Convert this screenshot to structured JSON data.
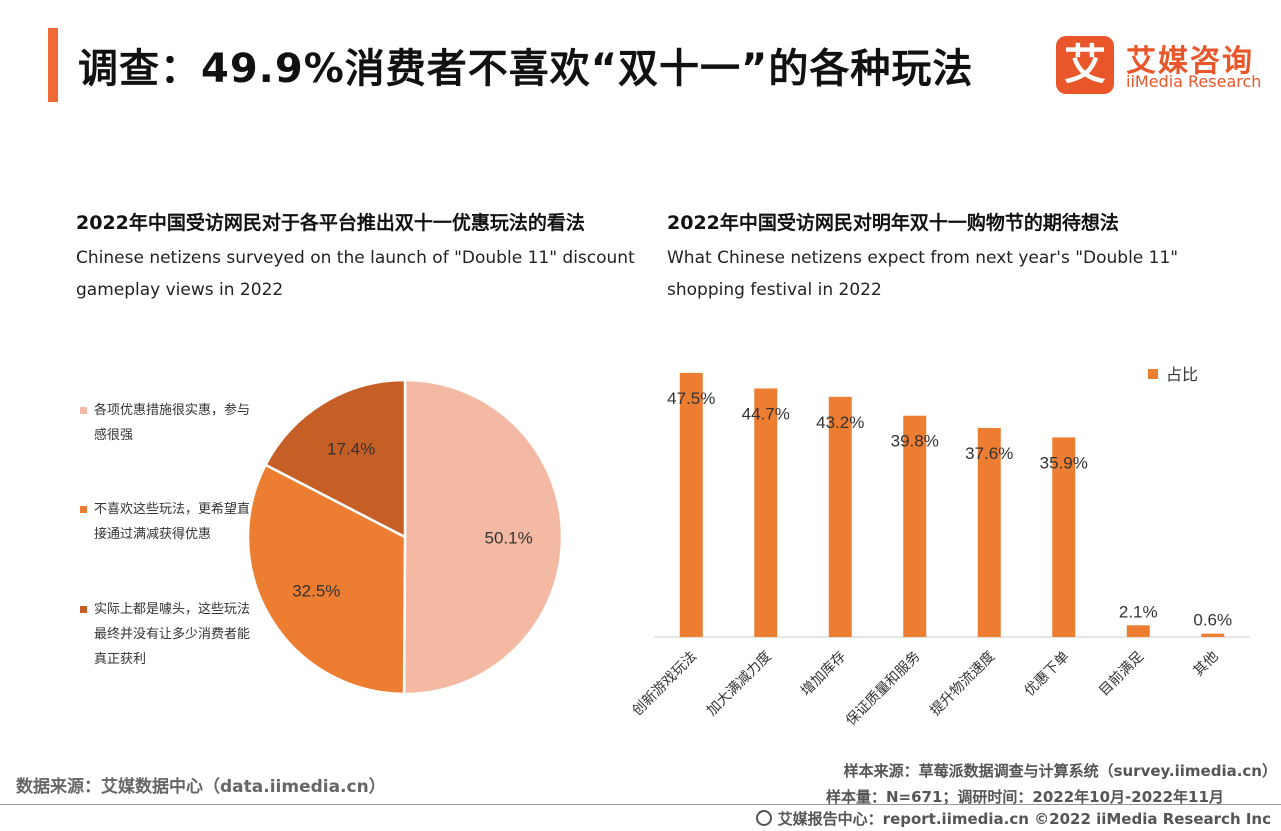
{
  "header": {
    "title": "调查：49.9%消费者不喜欢“双十一”的各种玩法",
    "logo_mark": "艾",
    "logo_cn": "艾媒咨询",
    "logo_en": "iiMedia Research",
    "accent_color": "#f06a35"
  },
  "left_panel": {
    "title": "2022年中国受访网民对于各平台推出双十一优惠玩法的看法",
    "description": "Chinese netizens surveyed on the launch of \"Double 11\" discount gameplay views in 2022"
  },
  "right_panel": {
    "title": "2022年中国受访网民对明年双十一购物节的期待想法",
    "description": "What Chinese netizens expect from next year's \"Double 11\" shopping festival in 2022"
  },
  "chart_data": [
    {
      "type": "pie",
      "slices": [
        {
          "label": "各项优惠措施很实惠，参与感很强",
          "value": 50.1,
          "value_label": "50.1%",
          "color": "#f4b9a2"
        },
        {
          "label": "不喜欢这些玩法，更希望直接通过满减获得优惠",
          "value": 32.5,
          "value_label": "32.5%",
          "color": "#ed7d31"
        },
        {
          "label": "实际上都是噱头，这些玩法最终并没有让多少消费者能真正获利",
          "value": 17.4,
          "value_label": "17.4%",
          "color": "#c55f26"
        }
      ],
      "legend_position": "left"
    },
    {
      "type": "bar",
      "categories": [
        "创新游戏玩法",
        "加大满减力度",
        "增加库存",
        "保证质量和服务",
        "提升物流速度",
        "优惠下单",
        "目前满足",
        "其他"
      ],
      "series": [
        {
          "name": "占比",
          "values": [
            47.5,
            44.7,
            43.2,
            39.8,
            37.6,
            35.9,
            2.1,
            0.6
          ],
          "value_labels": [
            "47.5%",
            "44.7%",
            "43.2%",
            "39.8%",
            "37.6%",
            "35.9%",
            "2.1%",
            "0.6%"
          ],
          "color": "#ed7d31"
        }
      ],
      "ylim": [
        0,
        50
      ],
      "grid": false,
      "legend_position": "top-right"
    }
  ],
  "footer": {
    "source_left": "数据来源：艾媒数据中心（data.iimedia.cn）",
    "sample_source": "样本来源：草莓派数据调查与计算系统（survey.iimedia.cn）",
    "sample_size": "样本量：N=671；调研时间：2022年10月-2022年11月",
    "copyright": "艾媒报告中心：report.iimedia.cn   ©2022  iiMedia Research  Inc"
  }
}
